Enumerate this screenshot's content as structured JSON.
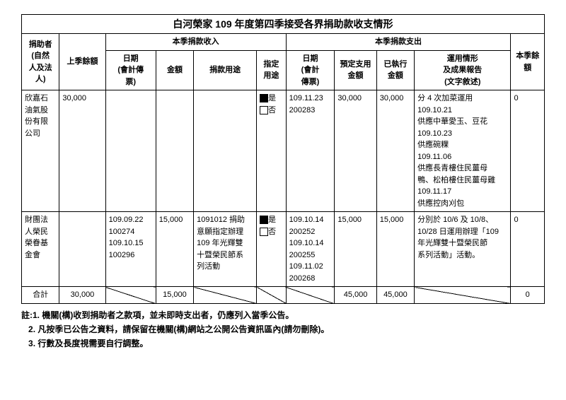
{
  "title": "白河榮家 109 年度第四季接受各界捐助款收支情形",
  "headers": {
    "donor": "捐助者\n(自然\n人及法\n人)",
    "prev_balance": "上季餘額",
    "income_group": "本季捐款收入",
    "expense_group": "本季捐款支出",
    "current_balance": "本季餘\n額",
    "income_date": "日期\n(會計傳\n票)",
    "income_amount": "金額",
    "income_purpose": "捐款用途",
    "income_designated": "指定\n用途",
    "expense_date": "日期\n(會計\n傳票)",
    "expense_budget": "預定支用\n金額",
    "expense_executed": "已執行\n金額",
    "expense_report": "運用情形\n及成果報告\n(文字敘述)"
  },
  "labels": {
    "yes": "是",
    "no": "否",
    "total": "合計"
  },
  "rows": [
    {
      "donor": "欣嘉石\n油氣股\n份有限\n公司",
      "prev_balance": "30,000",
      "income_date": "",
      "income_amount": "",
      "income_purpose": "",
      "designated_yes": true,
      "expense_date": "109.11.23\n200283",
      "expense_budget": "30,000",
      "expense_executed": "30,000",
      "expense_report": "分 4 次加菜運用\n109.10.21\n供應中華愛玉、豆花\n109.10.23\n供應碗粿\n109.11.06\n供應長青樓住民薑母\n鴨、松柏樓住民薑母雞\n109.11.17\n供應控肉刈包",
      "current_balance": "0"
    },
    {
      "donor": "財團法\n人榮民\n榮眷基\n金會",
      "prev_balance": "",
      "income_date": "109.09.22\n100274\n109.10.15\n100296",
      "income_amount": "15,000",
      "income_purpose": "1091012 捐助\n意願指定辦理\n109 年光輝雙\n十暨榮民節系\n列活動",
      "designated_yes": true,
      "expense_date": "109.10.14\n200252\n109.10.14\n200255\n109.11.02\n200268",
      "expense_budget": "15,000",
      "expense_executed": "15,000",
      "expense_report": "分別於 10/6 及 10/8、\n10/28 日運用辦理「109\n年光輝雙十暨榮民節\n系列活動」活動。",
      "current_balance": "0"
    }
  ],
  "totals": {
    "prev_balance": "30,000",
    "income_amount": "15,000",
    "expense_budget": "45,000",
    "expense_executed": "45,000",
    "current_balance": "0"
  },
  "notes": {
    "prefix": "註:",
    "n1": "1. 機關(構)收到捐助者之款項，並未即時支出者，仍應列入當季公告。",
    "n2": "2. 凡按季已公告之資料，請保留在機關(構)網站之公開公告資訊區內(請勿刪除)。",
    "n3": "3. 行數及長度視需要自行調整。"
  }
}
